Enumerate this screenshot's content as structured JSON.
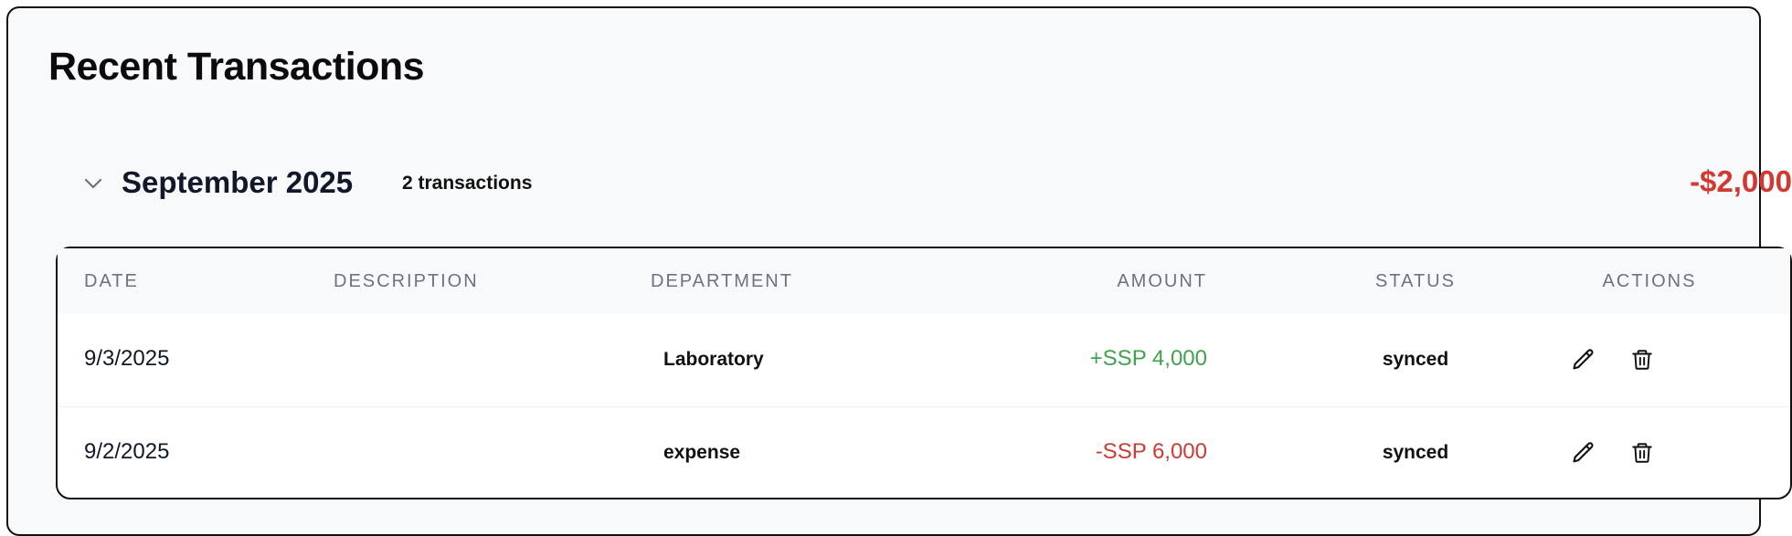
{
  "section": {
    "title": "Recent Transactions"
  },
  "group": {
    "month": "September 2025",
    "count_label": "2 transactions",
    "total": "-$2,000",
    "total_color": "#d03a33"
  },
  "table": {
    "headers": {
      "date": "DATE",
      "description": "DESCRIPTION",
      "department": "DEPARTMENT",
      "amount": "AMOUNT",
      "status": "STATUS",
      "actions": "ACTIONS"
    },
    "rows": [
      {
        "date": "9/3/2025",
        "description": "",
        "department": "Laboratory",
        "amount": "+SSP 4,000",
        "amount_color": "#3fa34d",
        "status": "synced",
        "actions": [
          "pencil-icon",
          "trash-icon"
        ]
      },
      {
        "date": "9/2/2025",
        "description": "",
        "department": "expense",
        "amount": "-SSP 6,000",
        "amount_color": "#d03a33",
        "status": "synced",
        "actions": [
          "pencil-icon",
          "trash-icon"
        ]
      }
    ]
  }
}
